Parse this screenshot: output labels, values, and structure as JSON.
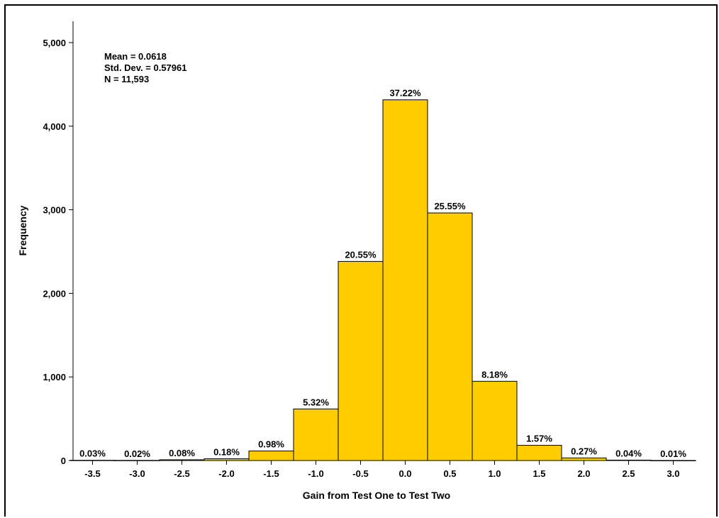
{
  "chart_data": {
    "type": "bar",
    "subtype": "histogram",
    "xlabel": "Gain from Test One to Test Two",
    "ylabel": "Frequency",
    "ylim": [
      0,
      5000
    ],
    "y_ticks": [
      0,
      1000,
      2000,
      3000,
      4000,
      5000
    ],
    "y_tick_labels": [
      "0",
      "1,000",
      "2,000",
      "3,000",
      "4,000",
      "5,000"
    ],
    "x_ticks": [
      -3.5,
      -3.0,
      -2.5,
      -2.0,
      -1.5,
      -1.0,
      -0.5,
      0.0,
      0.5,
      1.0,
      1.5,
      2.0,
      2.5,
      3.0
    ],
    "x_tick_labels": [
      "-3.5",
      "-3.0",
      "-2.5",
      "-2.0",
      "-1.5",
      "-1.0",
      "-0.5",
      "0.0",
      "0.5",
      "1.0",
      "1.5",
      "2.0",
      "2.5",
      "3.0"
    ],
    "bin_width": 0.5,
    "bins": [
      {
        "center": -3.5,
        "frequency": 3,
        "label": "0.03%"
      },
      {
        "center": -3.0,
        "frequency": 2,
        "label": "0.02%"
      },
      {
        "center": -2.5,
        "frequency": 9,
        "label": "0.08%"
      },
      {
        "center": -2.0,
        "frequency": 21,
        "label": "0.18%"
      },
      {
        "center": -1.5,
        "frequency": 114,
        "label": "0.98%"
      },
      {
        "center": -1.0,
        "frequency": 617,
        "label": "5.32%"
      },
      {
        "center": -0.5,
        "frequency": 2382,
        "label": "20.55%"
      },
      {
        "center": 0.0,
        "frequency": 4315,
        "label": "37.22%"
      },
      {
        "center": 0.5,
        "frequency": 2962,
        "label": "25.55%"
      },
      {
        "center": 1.0,
        "frequency": 948,
        "label": "8.18%"
      },
      {
        "center": 1.5,
        "frequency": 182,
        "label": "1.57%"
      },
      {
        "center": 2.0,
        "frequency": 31,
        "label": "0.27%"
      },
      {
        "center": 2.5,
        "frequency": 5,
        "label": "0.04%"
      },
      {
        "center": 3.0,
        "frequency": 1,
        "label": "0.01%"
      }
    ],
    "bar_color": "#FFCC00",
    "grid": false,
    "legend": "none"
  },
  "stats": {
    "mean": "Mean = 0.0618",
    "std_dev": "Std. Dev. = 0.57961",
    "n": "N = 11,593"
  }
}
